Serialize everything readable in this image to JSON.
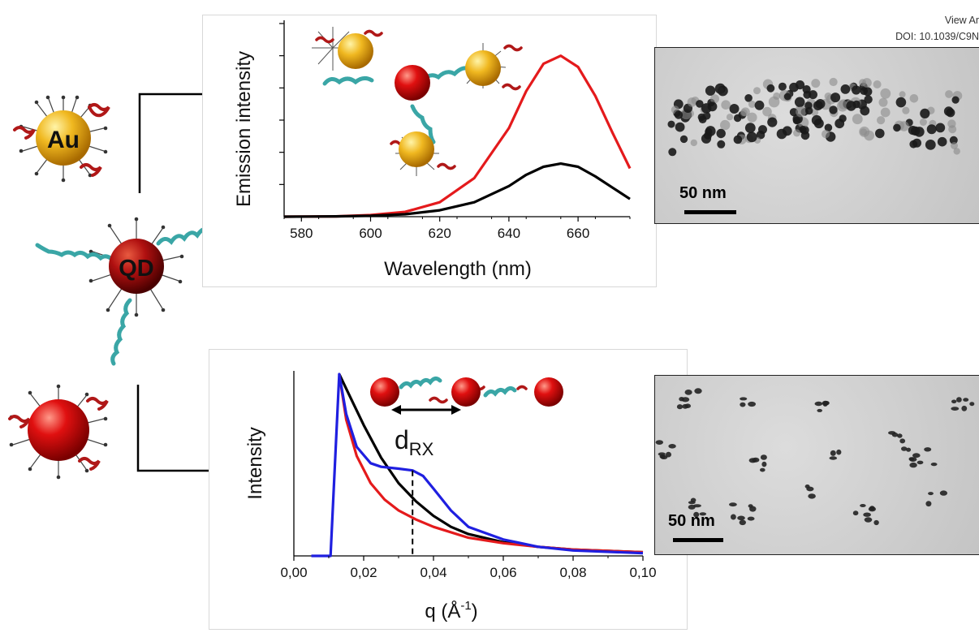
{
  "header": {
    "view_link": "View Ar",
    "doi": "DOI: 10.1039/C9N"
  },
  "particles": {
    "au_label": "Au",
    "qd_label": "QD"
  },
  "chart_data": [
    {
      "type": "line",
      "xlabel": "Wavelength (nm)",
      "ylabel": "Emission intensity",
      "xlim": [
        575,
        675
      ],
      "ylim": [
        0,
        1.2
      ],
      "x_ticks": [
        "580",
        "600",
        "620",
        "640",
        "660"
      ],
      "x_tick_values": [
        580,
        600,
        620,
        640,
        660
      ],
      "grid": false,
      "series": [
        {
          "color": "#e41a1c",
          "x": [
            575,
            590,
            600,
            610,
            620,
            630,
            640,
            645,
            650,
            655,
            660,
            665,
            670,
            675
          ],
          "y": [
            0,
            0.002,
            0.01,
            0.03,
            0.09,
            0.24,
            0.55,
            0.78,
            0.95,
            1.0,
            0.93,
            0.75,
            0.52,
            0.3
          ]
        },
        {
          "color": "#000000",
          "x": [
            575,
            590,
            600,
            610,
            620,
            630,
            640,
            645,
            650,
            655,
            660,
            665,
            670,
            675
          ],
          "y": [
            0,
            0.002,
            0.006,
            0.015,
            0.04,
            0.09,
            0.19,
            0.26,
            0.31,
            0.33,
            0.31,
            0.25,
            0.18,
            0.11
          ]
        }
      ]
    },
    {
      "type": "line",
      "xlabel": "q (Å",
      "xlabel_sup": "-1",
      "xlabel_end": ")",
      "ylabel": "Intensity",
      "xlim": [
        0,
        0.1
      ],
      "ylim": [
        0,
        1.0
      ],
      "x_ticks": [
        "0,00",
        "0,02",
        "0,04",
        "0,06",
        "0,08",
        "0,10"
      ],
      "x_tick_values": [
        0,
        0.02,
        0.04,
        0.06,
        0.08,
        0.1
      ],
      "annotation": {
        "d": "d",
        "sub": "RX",
        "x": 0.034
      },
      "grid": false,
      "series": [
        {
          "color": "#000000",
          "x": [
            0.013,
            0.016,
            0.02,
            0.025,
            0.03,
            0.035,
            0.04,
            0.045,
            0.05,
            0.06,
            0.07,
            0.08,
            0.1
          ],
          "y": [
            1.0,
            0.88,
            0.72,
            0.54,
            0.4,
            0.3,
            0.22,
            0.16,
            0.12,
            0.075,
            0.05,
            0.035,
            0.02
          ]
        },
        {
          "color": "#e41a1c",
          "x": [
            0.013,
            0.015,
            0.018,
            0.022,
            0.026,
            0.03,
            0.035,
            0.04,
            0.05,
            0.06,
            0.07,
            0.08,
            0.1
          ],
          "y": [
            1.0,
            0.75,
            0.55,
            0.4,
            0.31,
            0.25,
            0.2,
            0.16,
            0.1,
            0.07,
            0.05,
            0.035,
            0.02
          ]
        },
        {
          "color": "#1f1fe0",
          "x": [
            0.005,
            0.0105,
            0.013,
            0.015,
            0.018,
            0.022,
            0.025,
            0.03,
            0.034,
            0.037,
            0.04,
            0.045,
            0.05,
            0.06,
            0.07,
            0.08,
            0.1
          ],
          "y": [
            0,
            0,
            1.0,
            0.78,
            0.6,
            0.51,
            0.49,
            0.48,
            0.47,
            0.44,
            0.37,
            0.25,
            0.16,
            0.09,
            0.05,
            0.03,
            0.015
          ]
        }
      ]
    }
  ],
  "tem_images": [
    {
      "scale_label": "50 nm"
    },
    {
      "scale_label": "50 nm"
    }
  ]
}
